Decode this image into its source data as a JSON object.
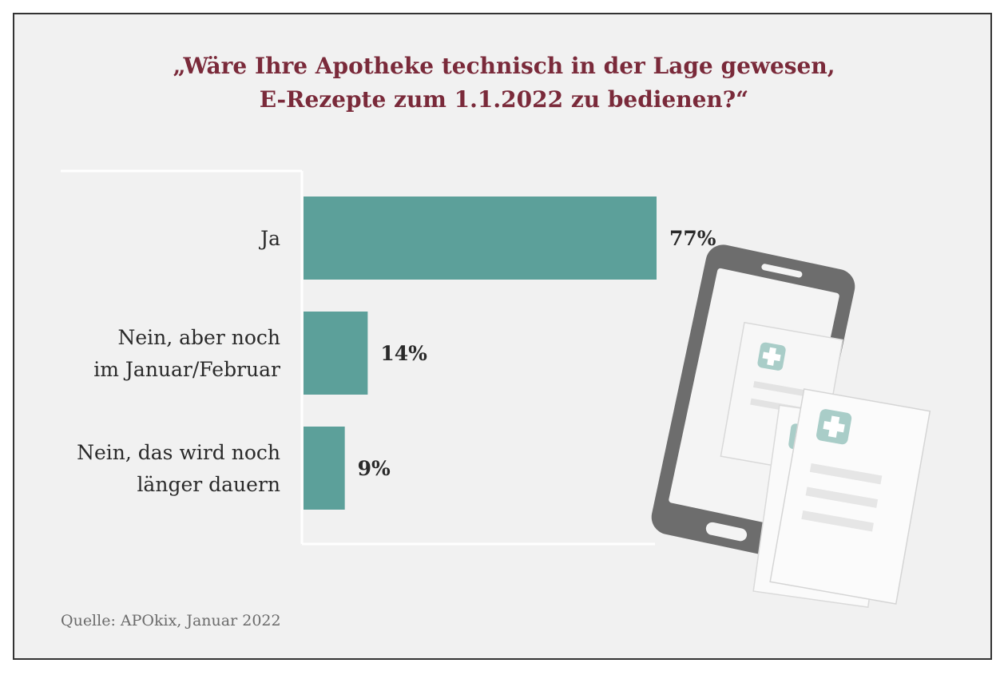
{
  "colors": {
    "title": "#7a2a3a",
    "bar": "#5ca09a",
    "axis": "#ffffff",
    "background": "#f1f1f1",
    "phone_body": "#6d6d6d",
    "cross": "#a9cdc8"
  },
  "chart_data": {
    "type": "bar",
    "orientation": "horizontal",
    "title_lines": [
      "„Wäre Ihre Apotheke technisch in der Lage gewesen,",
      "E-Rezepte zum 1.1.2022 zu bedienen?“"
    ],
    "categories": [
      [
        "Ja"
      ],
      [
        "Nein, aber noch",
        "im Januar/Februar"
      ],
      [
        "Nein, das wird noch",
        "länger dauern"
      ]
    ],
    "values": [
      77,
      14,
      9
    ],
    "value_labels": [
      "77%",
      "14%",
      "9%"
    ],
    "unit": "%",
    "xlim": [
      0,
      77
    ],
    "grid": false,
    "legend": "none"
  },
  "source": "Quelle: APOkix, Januar 2022",
  "illustration": {
    "icons": [
      "smartphone-icon",
      "prescription-document-icon",
      "medical-cross-icon"
    ]
  }
}
